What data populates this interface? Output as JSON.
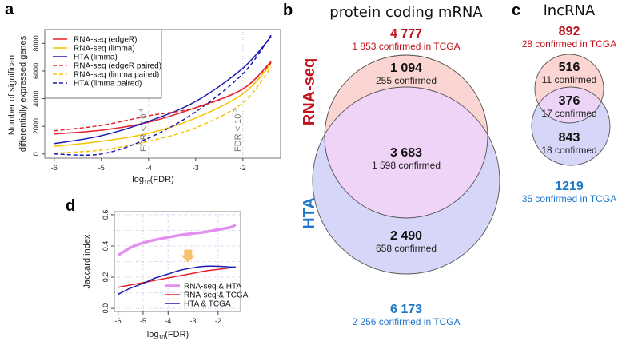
{
  "chart_data": [
    {
      "panel": "a",
      "type": "line",
      "xlabel": "log10(FDR)",
      "ylabel": [
        "Number of significant",
        "differentially expressed genes"
      ],
      "xlim": [
        -6.2,
        -1.2
      ],
      "ylim": [
        -300,
        9000
      ],
      "xticks": [
        -6,
        -5,
        -4,
        -3,
        -2
      ],
      "yticks": [
        0,
        2000,
        4000,
        6000,
        8000
      ],
      "grid": "vertical dotted",
      "legend": "top-left",
      "annotations": [
        {
          "x": -4,
          "text": "FDR < 10",
          "exp": "-4"
        },
        {
          "x": -2,
          "text": "FDR < 10",
          "exp": "-2"
        }
      ],
      "x": [
        -6,
        -5,
        -4,
        -3,
        -2,
        -1.4
      ],
      "series": [
        {
          "name": "RNA-seq (edgeR)",
          "color": "#e8202a",
          "dash": false,
          "values": [
            1450,
            1720,
            2300,
            3350,
            4700,
            6700
          ]
        },
        {
          "name": "RNA-seq (limma)",
          "color": "#f5c400",
          "dash": false,
          "values": [
            550,
            920,
            1500,
            2600,
            4350,
            6500
          ]
        },
        {
          "name": "HTA (limma)",
          "color": "#1a1ab0",
          "dash": false,
          "values": [
            750,
            1320,
            2360,
            3800,
            6200,
            8500
          ]
        },
        {
          "name": "RNA-seq (edgeR paired)",
          "color": "#e8202a",
          "dash": true,
          "values": [
            1680,
            2070,
            2760,
            3350,
            4700,
            6600
          ]
        },
        {
          "name": "RNA-seq (limma paired)",
          "color": "#f5c400",
          "dash": true,
          "values": [
            60,
            290,
            920,
            1900,
            3700,
            6300
          ]
        },
        {
          "name": "HTA (limma paired)",
          "color": "#1a1ab0",
          "dash": true,
          "values": [
            0,
            0,
            1150,
            3050,
            5800,
            8600
          ]
        }
      ]
    },
    {
      "panel": "b",
      "type": "venn",
      "title": "protein coding mRNA",
      "sets": [
        {
          "name": "RNA-seq",
          "color": "#c0141c",
          "fill": "#fbd5d2",
          "total": "4 777",
          "total_sub": "1 853 confirmed in TCGA"
        },
        {
          "name": "HTA",
          "color": "#1f77c9",
          "fill": "#d6d6f8",
          "total": "6 173",
          "total_sub": "2 256 confirmed in TCGA"
        }
      ],
      "regions": [
        {
          "id": "rnaseq_only",
          "count": "1 094",
          "sub": "255 confirmed"
        },
        {
          "id": "overlap",
          "count": "3 683",
          "sub": "1 598 confirmed",
          "fill": "#f0d4f8"
        },
        {
          "id": "hta_only",
          "count": "2 490",
          "sub": "658 confirmed"
        }
      ]
    },
    {
      "panel": "c",
      "type": "venn",
      "title": "lncRNA",
      "sets": [
        {
          "name": "RNA-seq",
          "color": "#c0141c",
          "fill": "#fbd5d2",
          "total": "892",
          "total_sub": "28 confirmed in TCGA"
        },
        {
          "name": "HTA",
          "color": "#1f77c9",
          "fill": "#d6d6f8",
          "total": "1219",
          "total_sub": "35 confirmed in TCGA"
        }
      ],
      "regions": [
        {
          "id": "rnaseq_only",
          "count": "516",
          "sub": "11 confirmed"
        },
        {
          "id": "overlap",
          "count": "376",
          "sub": "17 confirmed",
          "fill": "#ecd4f6"
        },
        {
          "id": "hta_only",
          "count": "843",
          "sub": "18 confirmed"
        }
      ]
    },
    {
      "panel": "d",
      "type": "line",
      "xlabel": "log10(FDR)",
      "ylabel": "Jaccard index",
      "xlim": [
        -6.15,
        -1.1
      ],
      "ylim": [
        -0.02,
        0.62
      ],
      "xticks": [
        -6,
        -5,
        -4,
        -3,
        -2
      ],
      "yticks": [
        0.0,
        0.2,
        0.4,
        0.6
      ],
      "ytick_labels": [
        "0.0",
        "0.2",
        "0.4",
        "0.6"
      ],
      "grid": "dotted",
      "legend": "bottom-right",
      "annotation": "orange down arrow near x=-3.2",
      "x": [
        -6,
        -5.5,
        -5,
        -4.5,
        -4,
        -3.5,
        -3,
        -2.5,
        -2,
        -1.5,
        -1.3
      ],
      "series": [
        {
          "name": "RNA-seq & HTA",
          "color": "#e38ef0",
          "width": "thick",
          "values": [
            0.34,
            0.39,
            0.42,
            0.44,
            0.455,
            0.47,
            0.48,
            0.49,
            0.505,
            0.52,
            0.535
          ]
        },
        {
          "name": "RNA-seq & TCGA",
          "color": "#e8202a",
          "width": "normal",
          "values": [
            0.135,
            0.15,
            0.165,
            0.18,
            0.195,
            0.21,
            0.225,
            0.24,
            0.25,
            0.26,
            0.265
          ]
        },
        {
          "name": "HTA & TCGA",
          "color": "#1a1ab0",
          "width": "normal",
          "values": [
            0.09,
            0.13,
            0.16,
            0.195,
            0.22,
            0.245,
            0.26,
            0.27,
            0.27,
            0.265,
            0.265
          ]
        }
      ]
    }
  ],
  "panel_letters": {
    "a": "a",
    "b": "b",
    "c": "c",
    "d": "d"
  }
}
